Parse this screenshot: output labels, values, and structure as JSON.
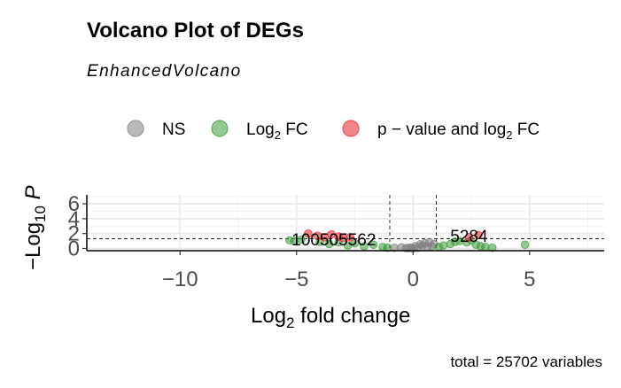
{
  "chart_data": {
    "type": "scatter",
    "title": "Volcano Plot of DEGs",
    "subtitle": "EnhancedVolcano",
    "xlabel": "Log2 fold change",
    "ylabel": "-Log10 P",
    "xlim": [
      -14,
      8.2
    ],
    "ylim": [
      -0.3,
      7.2
    ],
    "xticks": [
      -10,
      -5,
      0,
      5
    ],
    "yticks": [
      0,
      2,
      4,
      6
    ],
    "grid": true,
    "legend_position": "top",
    "cutoffs": {
      "log2fc": [
        -1,
        1
      ],
      "neg_log10_p": 1.3
    },
    "caption": "total = 25702 variables",
    "series": [
      {
        "name": "NS",
        "color": "#808080",
        "points": [
          [
            -0.3,
            0.05
          ],
          [
            -0.1,
            0.12
          ],
          [
            0.1,
            0.3
          ],
          [
            0.3,
            0.55
          ],
          [
            0.5,
            0.7
          ],
          [
            0.7,
            0.85
          ],
          [
            0.9,
            0.6
          ],
          [
            0.6,
            0.2
          ],
          [
            0.2,
            0.1
          ],
          [
            -0.5,
            0.15
          ],
          [
            -0.8,
            0.1
          ],
          [
            0.4,
            0.4
          ],
          [
            0.8,
            0.3
          ],
          [
            -0.2,
            0.05
          ],
          [
            0.0,
            0.02
          ]
        ]
      },
      {
        "name": "Log2 FC",
        "color": "#3a9a3a",
        "points": [
          [
            -5.3,
            1.1
          ],
          [
            -5.1,
            1.0
          ],
          [
            -4.8,
            1.2
          ],
          [
            -4.0,
            0.9
          ],
          [
            -3.6,
            0.6
          ],
          [
            -3.2,
            0.8
          ],
          [
            -2.8,
            0.4
          ],
          [
            -2.5,
            0.7
          ],
          [
            -2.1,
            0.3
          ],
          [
            -1.7,
            0.5
          ],
          [
            -1.3,
            0.2
          ],
          [
            -1.1,
            0.1
          ],
          [
            1.1,
            0.2
          ],
          [
            1.3,
            0.4
          ],
          [
            1.6,
            0.6
          ],
          [
            1.8,
            0.9
          ],
          [
            2.0,
            1.0
          ],
          [
            2.3,
            0.8
          ],
          [
            2.5,
            1.1
          ],
          [
            2.7,
            0.5
          ],
          [
            2.9,
            0.3
          ],
          [
            3.1,
            0.2
          ],
          [
            3.4,
            0.1
          ],
          [
            4.8,
            0.5
          ]
        ]
      },
      {
        "name": "p-value and log2 FC",
        "color": "#e8242b",
        "points": [
          [
            -4.5,
            2.0
          ],
          [
            -4.1,
            1.7
          ],
          [
            -3.8,
            1.5
          ],
          [
            -3.5,
            1.9
          ],
          [
            -3.2,
            1.6
          ],
          [
            -3.0,
            1.4
          ],
          [
            -2.7,
            1.5
          ],
          [
            2.4,
            1.5
          ],
          [
            2.8,
            1.8
          ]
        ]
      }
    ],
    "annotations": [
      {
        "text": "100505562",
        "x": -3.4,
        "y": 1.0
      },
      {
        "text": "5284",
        "x": 2.4,
        "y": 1.5
      }
    ]
  }
}
